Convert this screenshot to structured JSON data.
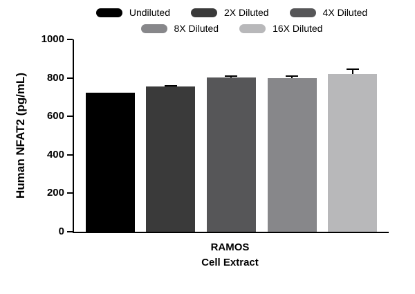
{
  "chart_data": {
    "type": "bar",
    "title": "",
    "categories": [
      "Undiluted",
      "2X Diluted",
      "4X Diluted",
      "8X Diluted",
      "16X Diluted"
    ],
    "values": [
      722,
      757,
      804,
      800,
      820
    ],
    "errors": [
      0,
      6,
      8,
      12,
      30
    ],
    "bar_colors": [
      "#000000",
      "#3a3a3a",
      "#565658",
      "#87878a",
      "#b8b8ba"
    ],
    "ylabel": "Human NFAT2 (pg/mL)",
    "xlabel_lines": [
      "RAMOS",
      "Cell Extract"
    ],
    "ylim": [
      0,
      1000
    ],
    "yticks": [
      0,
      200,
      400,
      600,
      800,
      1000
    ],
    "grid": false,
    "legend_position": "top",
    "legend": [
      {
        "label": "Undiluted",
        "color": "#000000"
      },
      {
        "label": "2X Diluted",
        "color": "#3a3a3a"
      },
      {
        "label": "4X Diluted",
        "color": "#565658"
      },
      {
        "label": "8X Diluted",
        "color": "#87878a"
      },
      {
        "label": "16X Diluted",
        "color": "#b8b8ba"
      }
    ],
    "legend_rows": [
      3,
      2
    ]
  }
}
